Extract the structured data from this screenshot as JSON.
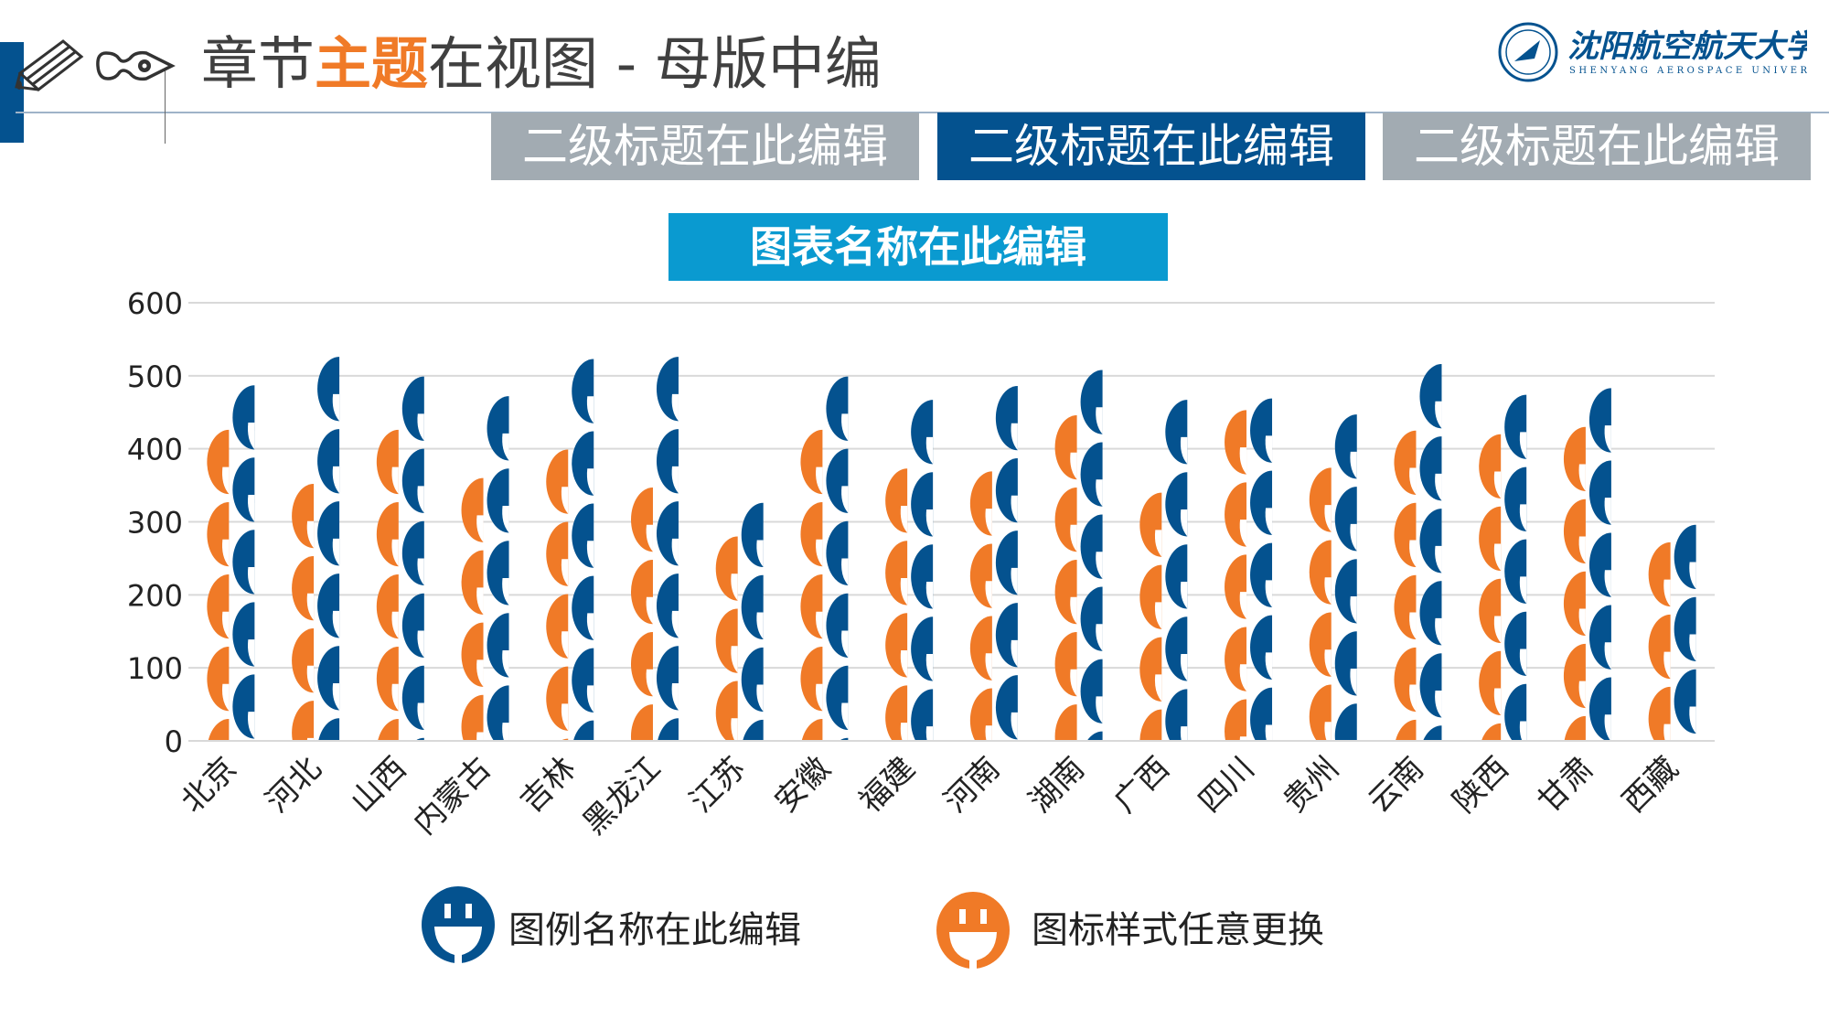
{
  "header": {
    "title_part1": "章节",
    "title_highlight": "主题",
    "title_part2": "在视图 - 母版中编",
    "logo_text_cn": "沈阳航空航天大学",
    "logo_text_en": "SHENYANG AEROSPACE UNIVERSITY",
    "icons": [
      "pencil-icon",
      "pen-nib-icon"
    ]
  },
  "tabs": [
    {
      "label": "二级标题在此编辑",
      "active": false
    },
    {
      "label": "二级标题在此编辑",
      "active": true
    },
    {
      "label": "二级标题在此编辑",
      "active": false
    }
  ],
  "colors": {
    "blue": "#04528f",
    "orange": "#f07a27",
    "tab_gray": "#a2abb2",
    "chart_title_bg": "#0a9ad0"
  },
  "chart_data": {
    "type": "bar",
    "subtype": "pictograph",
    "title": "图表名称在此编辑",
    "categories": [
      "北京",
      "河北",
      "山西",
      "内蒙古",
      "吉林",
      "黑龙江",
      "江苏",
      "安徽",
      "福建",
      "河南",
      "湖南",
      "广西",
      "四川",
      "贵州",
      "云南",
      "陕西",
      "甘肃",
      "西藏"
    ],
    "series": [
      {
        "name": "图标样式任意更换",
        "color": "#f07a27",
        "values": [
          426,
          352,
          426,
          360,
          399,
          347,
          280,
          426,
          373,
          369,
          446,
          340,
          453,
          374,
          425,
          420,
          430,
          272
        ]
      },
      {
        "name": "图例名称在此编辑",
        "color": "#04528f",
        "values": [
          487,
          526,
          499,
          472,
          523,
          526,
          326,
          499,
          467,
          486,
          508,
          467,
          469,
          447,
          516,
          474,
          483,
          296
        ]
      }
    ],
    "yticks": [
      0,
      100,
      200,
      300,
      400,
      500,
      600
    ],
    "ylim": [
      0,
      600
    ],
    "grid": true,
    "legend_position": "bottom"
  },
  "legend": [
    {
      "label": "图例名称在此编辑",
      "color": "#04528f",
      "icon": "plug-icon"
    },
    {
      "label": "图标样式任意更换",
      "color": "#f07a27",
      "icon": "plug-icon"
    }
  ]
}
